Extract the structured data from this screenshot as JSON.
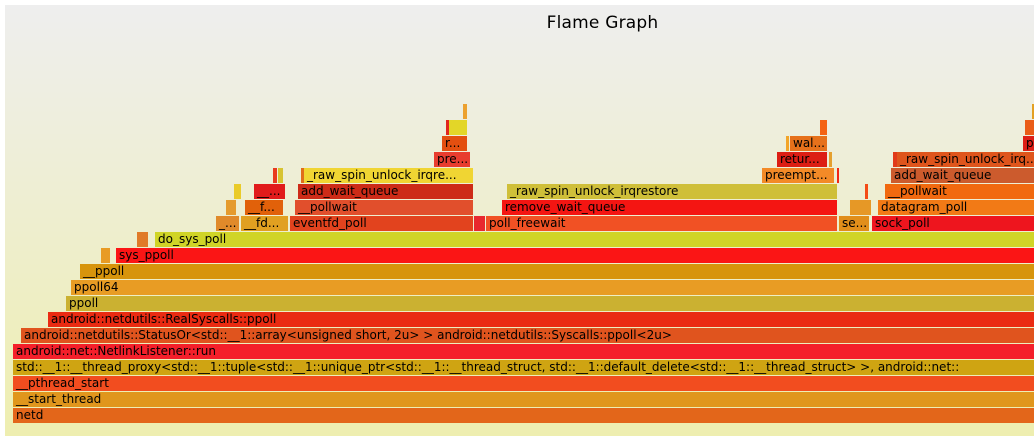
{
  "title": "Flame Graph",
  "chart_data": {
    "type": "flamegraph",
    "title": "Flame Graph",
    "frames": [
      {
        "label": "netd",
        "depth": 0,
        "start": 8,
        "end": 1029,
        "color": "#e3661a"
      },
      {
        "label": "__start_thread",
        "depth": 1,
        "start": 8,
        "end": 1029,
        "color": "#e0961d"
      },
      {
        "label": "__pthread_start",
        "depth": 2,
        "start": 8,
        "end": 1029,
        "color": "#f24d1f"
      },
      {
        "label": "std::__1::__thread_proxy<std::__1::tuple<std::__1::unique_ptr<std::__1::__thread_struct, std::__1::default_delete<std::__1::__thread_struct> >, android::net::",
        "depth": 3,
        "start": 8,
        "end": 1029,
        "color": "#cfa412"
      },
      {
        "label": "android::net::NetlinkListener::run",
        "depth": 4,
        "start": 8,
        "end": 1029,
        "color": "#f41f2a"
      },
      {
        "label": "android::netdutils::StatusOr<std::__1::array<unsigned short, 2u> > android::netdutils::Syscalls::ppoll<2u>",
        "depth": 5,
        "start": 16,
        "end": 1029,
        "color": "#e0541e"
      },
      {
        "label": "android::netdutils::RealSyscalls::ppoll",
        "depth": 6,
        "start": 43,
        "end": 1029,
        "color": "#ea2b12"
      },
      {
        "label": "ppoll",
        "depth": 7,
        "start": 61,
        "end": 1029,
        "color": "#cbb131"
      },
      {
        "label": "ppoll64",
        "depth": 8,
        "start": 66,
        "end": 1029,
        "color": "#e89c24"
      },
      {
        "label": "__ppoll",
        "depth": 9,
        "start": 75,
        "end": 1029,
        "color": "#d7940c"
      },
      {
        "label": "",
        "depth": 10,
        "start": 96,
        "end": 105,
        "color": "#e89b25"
      },
      {
        "label": "sys_ppoll",
        "depth": 10,
        "start": 111,
        "end": 1029,
        "color": "#fb1515"
      },
      {
        "label": "",
        "depth": 11,
        "start": 132,
        "end": 143,
        "color": "#e07a28"
      },
      {
        "label": "do_sys_poll",
        "depth": 11,
        "start": 150,
        "end": 1029,
        "color": "#d0d427"
      },
      {
        "label": "_...",
        "depth": 12,
        "start": 211,
        "end": 234,
        "color": "#e08a2a"
      },
      {
        "label": "__fd...",
        "depth": 12,
        "start": 236,
        "end": 283,
        "color": "#e1a021"
      },
      {
        "label": "eventfd_poll",
        "depth": 12,
        "start": 285,
        "end": 468,
        "color": "#e2431e"
      },
      {
        "label": "",
        "depth": 12,
        "start": 469,
        "end": 480,
        "color": "#e8282e"
      },
      {
        "label": "poll_freewait",
        "depth": 12,
        "start": 481,
        "end": 832,
        "color": "#f15124"
      },
      {
        "label": "se...",
        "depth": 12,
        "start": 834,
        "end": 864,
        "color": "#e18e1a"
      },
      {
        "label": "sock_poll",
        "depth": 12,
        "start": 867,
        "end": 1029,
        "color": "#ee151e"
      },
      {
        "label": "",
        "depth": 13,
        "start": 221,
        "end": 231,
        "color": "#e59b2d"
      },
      {
        "label": "__f...",
        "depth": 13,
        "start": 240,
        "end": 278,
        "color": "#e1610a"
      },
      {
        "label": "__pollwait",
        "depth": 13,
        "start": 290,
        "end": 468,
        "color": "#e14f2c"
      },
      {
        "label": "remove_wait_queue",
        "depth": 13,
        "start": 497,
        "end": 832,
        "color": "#f41512"
      },
      {
        "label": "",
        "depth": 13,
        "start": 845,
        "end": 866,
        "color": "#e69826"
      },
      {
        "label": "datagram_poll",
        "depth": 13,
        "start": 873,
        "end": 1029,
        "color": "#f27a16"
      },
      {
        "label": "",
        "depth": 14,
        "start": 229,
        "end": 236,
        "color": "#eacb29"
      },
      {
        "label": "__...",
        "depth": 14,
        "start": 249,
        "end": 280,
        "color": "#e11b1b"
      },
      {
        "label": "add_wait_queue",
        "depth": 14,
        "start": 293,
        "end": 468,
        "color": "#cd2b17"
      },
      {
        "label": "_raw_spin_unlock_irqrestore",
        "depth": 14,
        "start": 502,
        "end": 832,
        "color": "#cfbf39"
      },
      {
        "label": "",
        "depth": 14,
        "start": 860,
        "end": 863,
        "color": "#f44b16"
      },
      {
        "label": "__pollwait",
        "depth": 14,
        "start": 880,
        "end": 1029,
        "color": "#f1690f"
      },
      {
        "label": "",
        "depth": 15,
        "start": 268,
        "end": 272,
        "color": "#e93a1e"
      },
      {
        "label": "",
        "depth": 15,
        "start": 273,
        "end": 278,
        "color": "#d7c331"
      },
      {
        "label": "",
        "depth": 15,
        "start": 296,
        "end": 299,
        "color": "#e06d1a"
      },
      {
        "label": "_raw_spin_unlock_irqre...",
        "depth": 15,
        "start": 299,
        "end": 468,
        "color": "#f0d533"
      },
      {
        "label": "preempt...",
        "depth": 15,
        "start": 757,
        "end": 829,
        "color": "#f38a27"
      },
      {
        "label": "",
        "depth": 15,
        "start": 832,
        "end": 834,
        "color": "#f22617"
      },
      {
        "label": "add_wait_queue",
        "depth": 15,
        "start": 886,
        "end": 1029,
        "color": "#cc5b2d"
      },
      {
        "label": "pre...",
        "depth": 16,
        "start": 429,
        "end": 465,
        "color": "#e83d2f"
      },
      {
        "label": "retur...",
        "depth": 16,
        "start": 772,
        "end": 822,
        "color": "#dc1e14"
      },
      {
        "label": "",
        "depth": 16,
        "start": 824,
        "end": 827,
        "color": "#e5a02e"
      },
      {
        "label": "",
        "depth": 16,
        "start": 888,
        "end": 892,
        "color": "#e13a1a"
      },
      {
        "label": "_raw_spin_unlock_irq...",
        "depth": 16,
        "start": 892,
        "end": 1029,
        "color": "#df551c"
      },
      {
        "label": "r...",
        "depth": 17,
        "start": 437,
        "end": 462,
        "color": "#e34f10"
      },
      {
        "label": "",
        "depth": 17,
        "start": 781,
        "end": 784,
        "color": "#f2a52a"
      },
      {
        "label": "wal...",
        "depth": 17,
        "start": 785,
        "end": 822,
        "color": "#e6711b"
      },
      {
        "label": "pr",
        "depth": 17,
        "start": 1018,
        "end": 1029,
        "color": "#dd1f18"
      },
      {
        "label": "",
        "depth": 18,
        "start": 441,
        "end": 444,
        "color": "#e2261e"
      },
      {
        "label": "",
        "depth": 18,
        "start": 444,
        "end": 462,
        "color": "#e3d628"
      },
      {
        "label": "",
        "depth": 18,
        "start": 815,
        "end": 822,
        "color": "#f46313"
      },
      {
        "label": "",
        "depth": 18,
        "start": 1020,
        "end": 1029,
        "color": "#ea5c18"
      },
      {
        "label": "",
        "depth": 19,
        "start": 458,
        "end": 462,
        "color": "#eca12f"
      },
      {
        "label": "",
        "depth": 19,
        "start": 1027,
        "end": 1029,
        "color": "#e3a023"
      }
    ]
  }
}
